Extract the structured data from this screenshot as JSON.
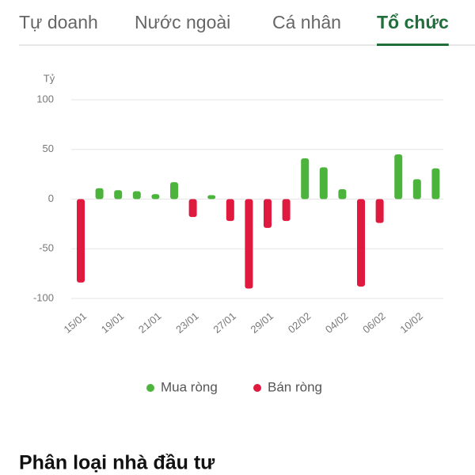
{
  "tabs": [
    "Tự doanh",
    "Nước ngoài",
    "Cá nhân",
    "Tổ chức"
  ],
  "active_tab": 3,
  "chart_data": {
    "type": "bar",
    "y_unit": "Tỷ",
    "categories": [
      "15/01",
      null,
      "19/01",
      null,
      "21/01",
      null,
      "23/01",
      null,
      "27/01",
      null,
      "29/01",
      null,
      "02/02",
      null,
      "04/02",
      null,
      "06/02",
      null,
      "10/02",
      null
    ],
    "values": [
      -84,
      11,
      9,
      8,
      5,
      17,
      -18,
      4,
      -22,
      -90,
      -29,
      -22,
      41,
      32,
      10,
      -88,
      -24,
      45,
      20,
      31
    ],
    "series": [
      {
        "name": "Mua ròng",
        "color": "#4cb43c"
      },
      {
        "name": "Bán ròng",
        "color": "#e0193f"
      }
    ],
    "ylim": [
      -100,
      100
    ],
    "yticks": [
      100,
      50,
      0,
      -50,
      -100
    ],
    "grid": true
  },
  "section_title": "Phân loại nhà đầu tư"
}
